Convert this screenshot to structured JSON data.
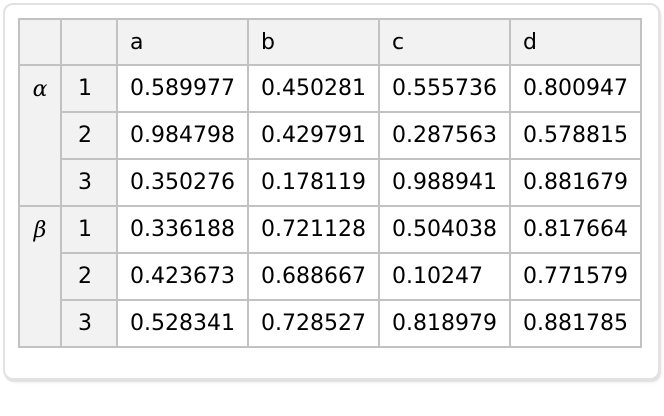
{
  "table": {
    "columns": [
      "a",
      "b",
      "c",
      "d"
    ],
    "groups": [
      {
        "key": "α",
        "rows": [
          {
            "idx": "1",
            "values": [
              "0.589977",
              "0.450281",
              "0.555736",
              "0.800947"
            ]
          },
          {
            "idx": "2",
            "values": [
              "0.984798",
              "0.429791",
              "0.287563",
              "0.578815"
            ]
          },
          {
            "idx": "3",
            "values": [
              "0.350276",
              "0.178119",
              "0.988941",
              "0.881679"
            ]
          }
        ]
      },
      {
        "key": "β",
        "rows": [
          {
            "idx": "1",
            "values": [
              "0.336188",
              "0.721128",
              "0.504038",
              "0.817664"
            ]
          },
          {
            "idx": "2",
            "values": [
              "0.423673",
              "0.688667",
              "0.10247",
              "0.771579"
            ]
          },
          {
            "idx": "3",
            "values": [
              "0.528341",
              "0.728527",
              "0.818979",
              "0.881785"
            ]
          }
        ]
      }
    ]
  },
  "colors": {
    "header_bg": "#f2f2f2",
    "grid_line": "#c2c2c2",
    "panel_border": "#e2e2e2",
    "cell_bg": "#ffffff",
    "text": "#000000"
  }
}
